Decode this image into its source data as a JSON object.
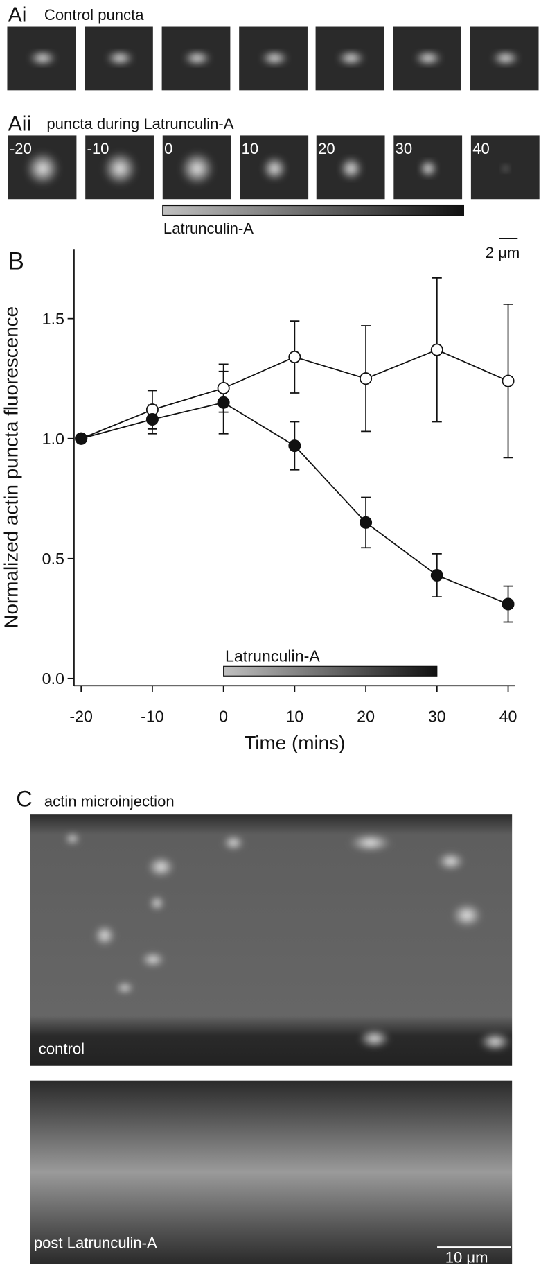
{
  "panel_a": {
    "label_i": "Ai",
    "title_i": "Control puncta",
    "label_ii": "Aii",
    "title_ii": "puncta during Latrunculin-A",
    "time_labels": [
      "-20",
      "-10",
      "0",
      "10",
      "20",
      "30",
      "40"
    ],
    "drug_label": "Latrunculin-A",
    "scale_bar": "2 μm"
  },
  "chart_data": {
    "type": "line",
    "panel_label": "B",
    "x_label": "Time (mins)",
    "y_label": "Normalized actin puncta fluorescence",
    "x": [
      -20,
      -10,
      0,
      10,
      20,
      30,
      40
    ],
    "series": [
      {
        "color": "#111111",
        "marker_fill": "#ffffff",
        "values": [
          1.0,
          1.12,
          1.21,
          1.34,
          1.25,
          1.37,
          1.24
        ],
        "errors": [
          0,
          0.08,
          0.1,
          0.15,
          0.22,
          0.3,
          0.32
        ]
      },
      {
        "color": "#111111",
        "marker_fill": "#111111",
        "values": [
          1.0,
          1.08,
          1.15,
          0.97,
          0.65,
          0.43,
          0.31
        ],
        "errors": [
          0,
          0.06,
          0.13,
          0.1,
          0.105,
          0.09,
          0.075
        ]
      }
    ],
    "xlim": [
      -21,
      41
    ],
    "ylim": [
      -0.03,
      1.79
    ],
    "xticks": [
      -20,
      -10,
      0,
      10,
      20,
      30,
      40
    ],
    "yticks": [
      {
        "value": 0,
        "label": "0.0"
      },
      0.5,
      {
        "value": 1,
        "label": "1.0"
      },
      {
        "value": 1.5,
        "label": "1.5"
      }
    ],
    "drug_bar": {
      "label": "Latrunculin-A",
      "start": 0,
      "end": 30
    }
  },
  "panel_c": {
    "label": "C",
    "title": "actin microinjection",
    "image_1_label": "control",
    "image_2_label": "post Latrunculin-A",
    "scale_bar": "10 μm"
  }
}
